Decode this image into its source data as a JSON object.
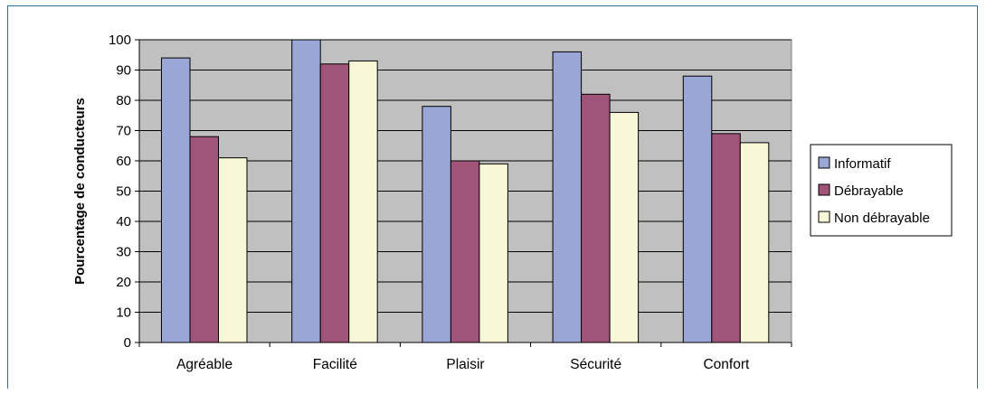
{
  "chart_data": {
    "type": "bar",
    "categories": [
      "Agréable",
      "Facilité",
      "Plaisir",
      "Sécurité",
      "Confort"
    ],
    "series": [
      {
        "name": "Informatif",
        "values": [
          94,
          100,
          78,
          96,
          88
        ],
        "color": "#9aa6d6"
      },
      {
        "name": "Débrayable",
        "values": [
          68,
          92,
          60,
          82,
          69
        ],
        "color": "#a15479"
      },
      {
        "name": "Non débrayable",
        "values": [
          61,
          93,
          59,
          76,
          66
        ],
        "color": "#f7f6d6"
      }
    ],
    "ylabel": "Pourcentage de conducteurs",
    "xlabel": "",
    "ylim": [
      0,
      100
    ],
    "yticks": [
      0,
      10,
      20,
      30,
      40,
      50,
      60,
      70,
      80,
      90,
      100
    ],
    "grid": true,
    "plot_background": "#c0c0c0",
    "legend_position": "right"
  }
}
